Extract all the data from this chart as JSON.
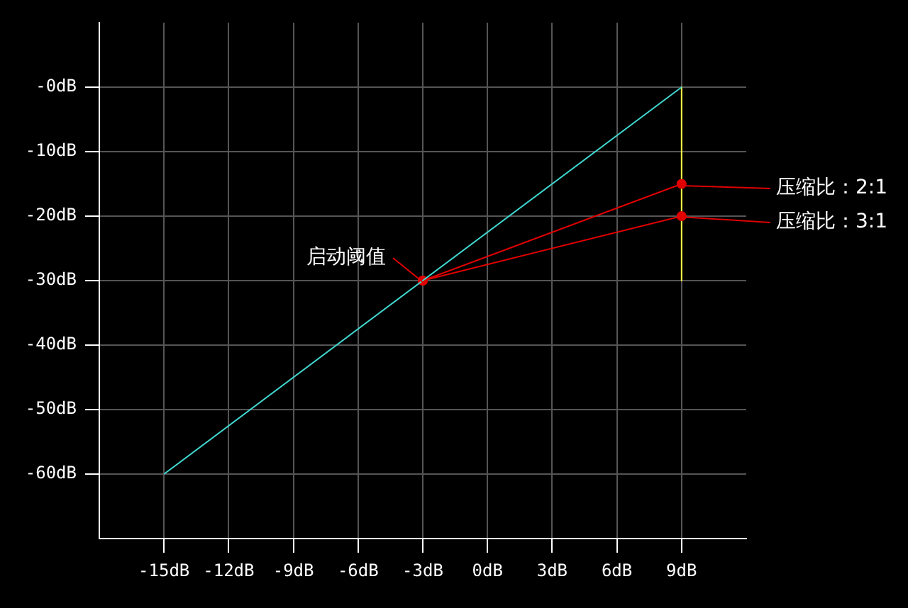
{
  "chart_data": {
    "type": "line",
    "xlim": [
      -18,
      12
    ],
    "xticks": [
      {
        "value": -15,
        "label": "-15dB"
      },
      {
        "value": -12,
        "label": "-12dB"
      },
      {
        "value": -9,
        "label": "-9dB"
      },
      {
        "value": -6,
        "label": "-6dB"
      },
      {
        "value": -3,
        "label": "-3dB"
      },
      {
        "value": 0,
        "label": "0dB"
      },
      {
        "value": 3,
        "label": "3dB"
      },
      {
        "value": 6,
        "label": "6dB"
      },
      {
        "value": 9,
        "label": "9dB"
      }
    ],
    "ylim": [
      -70,
      10
    ],
    "yticks": [
      {
        "value": 0,
        "label": "-0dB"
      },
      {
        "value": -10,
        "label": "-10dB"
      },
      {
        "value": -20,
        "label": "-20dB"
      },
      {
        "value": -30,
        "label": "-30dB"
      },
      {
        "value": -40,
        "label": "-40dB"
      },
      {
        "value": -50,
        "label": "-50dB"
      },
      {
        "value": -60,
        "label": "-60dB"
      }
    ],
    "grid": true,
    "legend": false,
    "series": [
      {
        "x": [
          -15,
          9
        ],
        "values": [
          -60,
          0
        ],
        "color": "#40d8d0",
        "marker": "none"
      },
      {
        "x": [
          -3,
          9
        ],
        "values": [
          -30,
          -15
        ],
        "color": "#e00000",
        "marker": "circle"
      },
      {
        "x": [
          -3,
          9
        ],
        "values": [
          -30,
          -20
        ],
        "color": "#e00000",
        "marker": "circle"
      },
      {
        "x": [
          9,
          9
        ],
        "values": [
          0,
          -30
        ],
        "color": "#ffff40",
        "marker": "none"
      }
    ],
    "annotations": [
      "启动阈值",
      "压缩比：2:1",
      "压缩比：3:1"
    ]
  }
}
